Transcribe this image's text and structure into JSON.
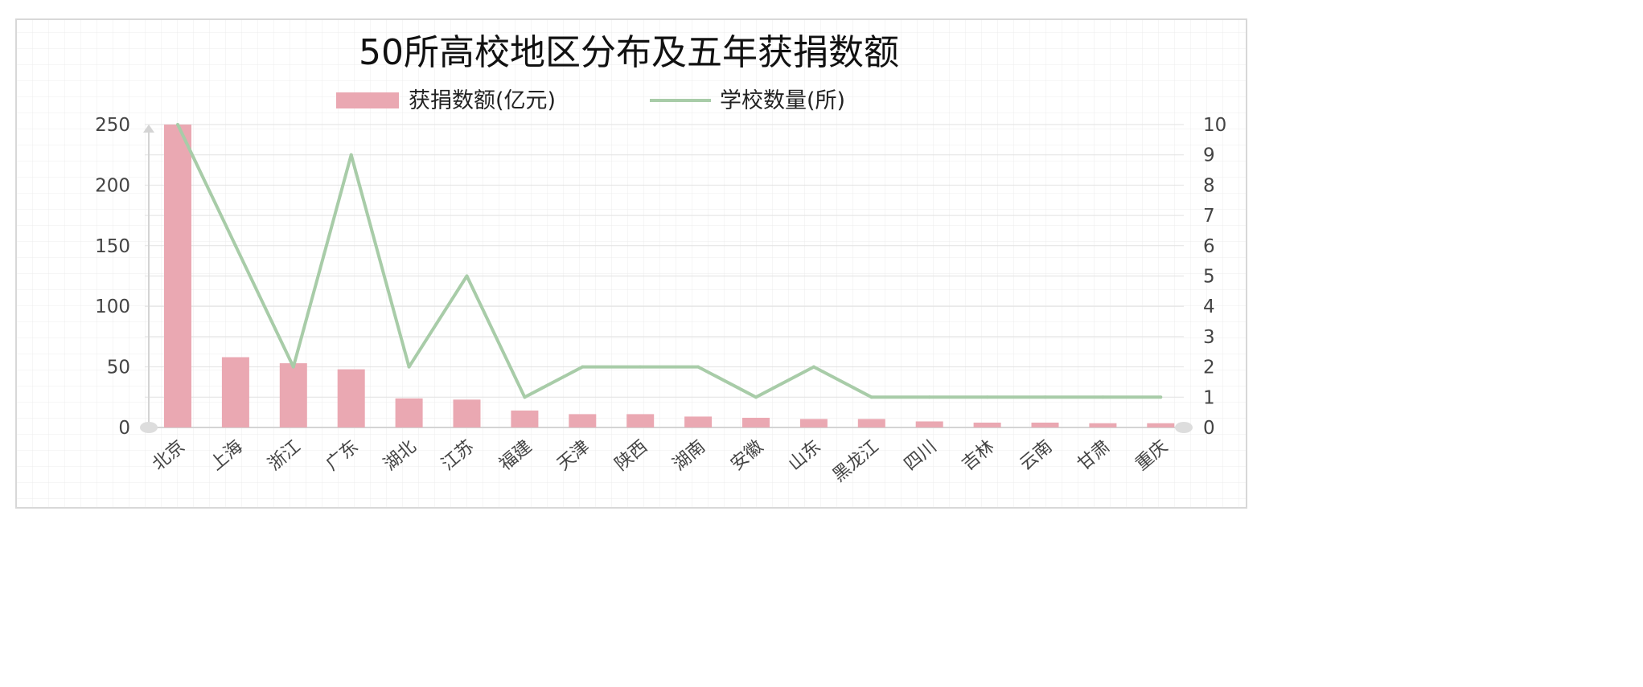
{
  "chart_data": {
    "type": "bar",
    "title": "50所高校地区分布及五年获捐数额",
    "categories": [
      "北京",
      "上海",
      "浙江",
      "广东",
      "湖北",
      "江苏",
      "福建",
      "天津",
      "陕西",
      "湖南",
      "安徽",
      "山东",
      "黑龙江",
      "四川",
      "吉林",
      "云南",
      "甘肃",
      "重庆"
    ],
    "series": [
      {
        "name": "获捐数额(亿元)",
        "type": "bar",
        "axis": "left",
        "color": "#eaa8b2",
        "values": [
          250,
          58,
          53,
          48,
          24,
          23,
          14,
          11,
          11,
          9,
          8,
          7,
          7,
          5,
          4,
          4,
          3.5,
          3.5
        ]
      },
      {
        "name": "学校数量(所)",
        "type": "line",
        "axis": "right",
        "color": "#a8cca8",
        "values": [
          10,
          6,
          2,
          9,
          2,
          5,
          1,
          2,
          2,
          2,
          1,
          2,
          1,
          1,
          1,
          1,
          1,
          1
        ]
      }
    ],
    "y_left": {
      "range": [
        0,
        250
      ],
      "ticks": [
        "250",
        "200",
        "150",
        "100",
        "50",
        "0"
      ]
    },
    "y_right": {
      "range": [
        0,
        10
      ],
      "ticks": [
        "10",
        "9",
        "8",
        "7",
        "6",
        "5",
        "4",
        "3",
        "2",
        "1",
        "0"
      ]
    },
    "grid": true,
    "legend": "top-center"
  }
}
